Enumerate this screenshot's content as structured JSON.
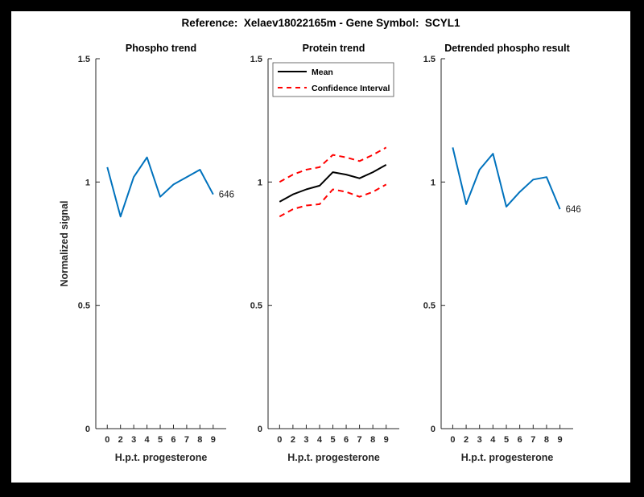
{
  "figure_title": "Reference:  Xelaev18022165m - Gene Symbol:  SCYL1",
  "colors": {
    "frame_bg": "#000000",
    "figure_bg": "#ffffff",
    "axis": "#262626",
    "line_blue": "#0072BD",
    "line_red": "#FF0000",
    "line_black": "#000000"
  },
  "chart_data": [
    {
      "type": "line",
      "title": "Phospho trend",
      "xlabel": "H.p.t. progesterone",
      "ylabel": "Normalized signal",
      "x_tick_labels": [
        "0",
        "2",
        "3",
        "4",
        "5",
        "6",
        "7",
        "8",
        "9"
      ],
      "y_ticks": [
        0,
        0.5,
        1,
        1.5
      ],
      "y_tick_labels": [
        "0",
        "0.5",
        "1",
        "1.5"
      ],
      "ylim": [
        0,
        1.5
      ],
      "grid": false,
      "legend": null,
      "series": [
        {
          "name": "phospho",
          "color": "#0072BD",
          "dash": false,
          "width": 2,
          "values": [
            1.06,
            0.86,
            1.02,
            1.1,
            0.94,
            0.99,
            1.02,
            1.05,
            0.95
          ],
          "end_label": "646"
        }
      ]
    },
    {
      "type": "line",
      "title": "Protein trend",
      "xlabel": "H.p.t. progesterone",
      "ylabel": "",
      "x_tick_labels": [
        "0",
        "2",
        "3",
        "4",
        "5",
        "6",
        "7",
        "8",
        "9"
      ],
      "y_ticks": [
        0,
        0.5,
        1,
        1.5
      ],
      "y_tick_labels": [
        "0",
        "0.5",
        "1",
        "1.5"
      ],
      "ylim": [
        0,
        1.5
      ],
      "grid": false,
      "legend": {
        "position": "top-left",
        "entries": [
          {
            "label": "Mean",
            "color": "#000000",
            "dash": false
          },
          {
            "label": "Confidence Interval",
            "color": "#FF0000",
            "dash": true
          }
        ]
      },
      "series": [
        {
          "name": "mean",
          "color": "#000000",
          "dash": false,
          "width": 2,
          "values": [
            0.92,
            0.95,
            0.97,
            0.985,
            1.04,
            1.03,
            1.015,
            1.04,
            1.07
          ],
          "end_label": null
        },
        {
          "name": "ci-upper",
          "color": "#FF0000",
          "dash": true,
          "width": 2,
          "values": [
            1.0,
            1.03,
            1.05,
            1.06,
            1.11,
            1.1,
            1.085,
            1.11,
            1.14
          ],
          "end_label": null
        },
        {
          "name": "ci-lower",
          "color": "#FF0000",
          "dash": true,
          "width": 2,
          "values": [
            0.86,
            0.89,
            0.905,
            0.91,
            0.97,
            0.96,
            0.94,
            0.96,
            0.99
          ],
          "end_label": null
        }
      ]
    },
    {
      "type": "line",
      "title": "Detrended phospho result",
      "xlabel": "H.p.t. progesterone",
      "ylabel": "",
      "x_tick_labels": [
        "0",
        "2",
        "3",
        "4",
        "5",
        "6",
        "7",
        "8",
        "9"
      ],
      "y_ticks": [
        0,
        0.5,
        1,
        1.5
      ],
      "y_tick_labels": [
        "0",
        "0.5",
        "1",
        "1.5"
      ],
      "ylim": [
        0,
        1.5
      ],
      "grid": false,
      "legend": null,
      "series": [
        {
          "name": "detrended-phospho",
          "color": "#0072BD",
          "dash": false,
          "width": 2,
          "values": [
            1.14,
            0.91,
            1.05,
            1.115,
            0.9,
            0.96,
            1.01,
            1.02,
            0.89
          ],
          "end_label": "646"
        }
      ]
    }
  ]
}
